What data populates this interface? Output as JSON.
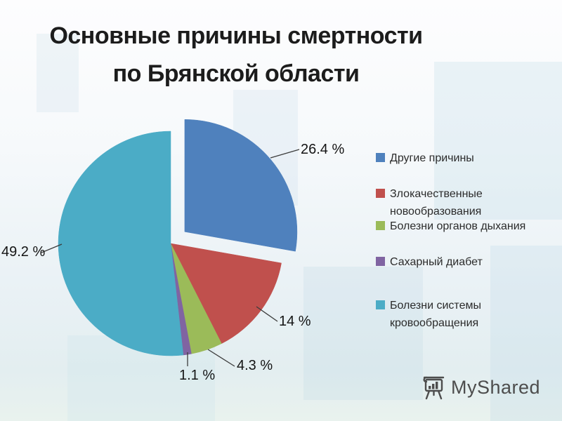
{
  "title": {
    "line1": "Основные причины смертности",
    "line2": "по Брянской области"
  },
  "chart_data": {
    "type": "pie",
    "title": "Основные причины смертности по Брянской области",
    "legend_position": "right",
    "clockwise": true,
    "start_angle_deg": 0,
    "exploded_slice": "Другие причины",
    "series": [
      {
        "label": "Другие причины",
        "value": 26.4,
        "display": "26.4 %",
        "color": "#4f81bd"
      },
      {
        "label": "Злокачественные новообразования",
        "value": 14,
        "display": "14 %",
        "color": "#c0504d"
      },
      {
        "label": "Болезни органов дыхания",
        "value": 4.3,
        "display": "4.3 %",
        "color": "#9bbb59"
      },
      {
        "label": "Сахарный диабет",
        "value": 1.1,
        "display": "1.1 %",
        "color": "#8064a2"
      },
      {
        "label": "Болезни системы кровообращения",
        "value": 49.2,
        "display": "49.2 %",
        "color": "#4bacc6"
      }
    ]
  },
  "watermark": {
    "text": "MyShared",
    "icon": "flipchart-bar-chart-icon",
    "color": "#4d4d4d"
  }
}
